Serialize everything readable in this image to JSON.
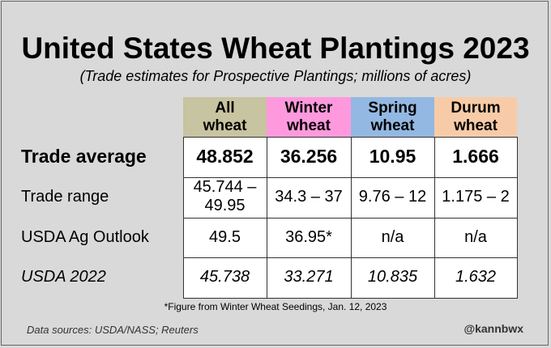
{
  "title": "United States Wheat Plantings 2023",
  "subtitle": "(Trade estimates for Prospective Plantings; millions of acres)",
  "chart_data": {
    "type": "table",
    "columns": [
      {
        "label": "All\nwheat",
        "color": "#c8c3a0"
      },
      {
        "label": "Winter\nwheat",
        "color": "#ff99dd"
      },
      {
        "label": "Spring\nwheat",
        "color": "#93b8e2"
      },
      {
        "label": "Durum\nwheat",
        "color": "#f8cba8"
      }
    ],
    "rows": [
      {
        "label": "Trade average",
        "values": [
          "48.852",
          "36.256",
          "10.95",
          "1.666"
        ],
        "style": "bold"
      },
      {
        "label": "Trade range",
        "values": [
          "45.744 –\n49.95",
          "34.3 – 37",
          "9.76 – 12",
          "1.175 – 2"
        ],
        "style": "normal"
      },
      {
        "label": "USDA Ag Outlook",
        "values": [
          "49.5",
          "36.95*",
          "n/a",
          "n/a"
        ],
        "style": "normal"
      },
      {
        "label": "USDA 2022",
        "values": [
          "45.738",
          "33.271",
          "10.835",
          "1.632"
        ],
        "style": "italic"
      }
    ]
  },
  "footnote": "*Figure from Winter Wheat Seedings, Jan. 12, 2023",
  "source": "Data sources: USDA/NASS; Reuters",
  "handle": "@kannbwx"
}
